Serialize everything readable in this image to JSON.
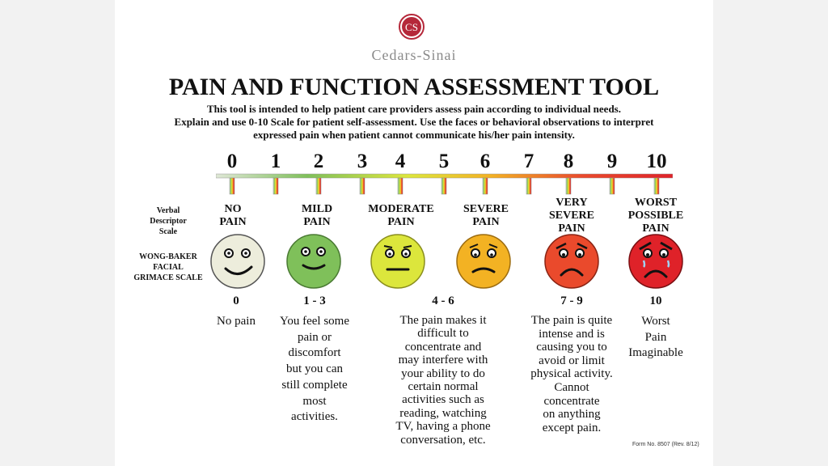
{
  "brand": {
    "logo_letters": "CS",
    "name": "Cedars-Sinai"
  },
  "title": "PAIN AND FUNCTION ASSESSMENT TOOL",
  "intro_lines": [
    "This tool is intended to help patient care providers assess pain according to individual needs.",
    "Explain and use 0-10 Scale for patient self-assessment. Use the faces or behavioral observations to interpret",
    "expressed pain when patient cannot communicate his/her pain intensity."
  ],
  "scale_numbers": [
    "0",
    "1",
    "2",
    "3",
    "4",
    "5",
    "6",
    "7",
    "8",
    "9",
    "10"
  ],
  "side_labels": {
    "verbal": [
      "Verbal",
      "Descriptor",
      "Scale"
    ],
    "wong_baker": [
      "WONG-BAKER",
      "FACIAL",
      "GRIMACE SCALE"
    ]
  },
  "descriptors": [
    {
      "lines": [
        "NO",
        "PAIN"
      ]
    },
    {
      "lines": [
        "MILD",
        "PAIN"
      ]
    },
    {
      "lines": [
        "MODERATE",
        "PAIN"
      ]
    },
    {
      "lines": [
        "SEVERE",
        "PAIN"
      ]
    },
    {
      "lines": [
        "VERY",
        "SEVERE",
        "PAIN"
      ]
    },
    {
      "lines": [
        "WORST",
        "POSSIBLE",
        "PAIN"
      ]
    }
  ],
  "faces": [
    {
      "name": "no-pain-face",
      "color": "#ededdc"
    },
    {
      "name": "mild-pain-face",
      "color": "#7fc05a"
    },
    {
      "name": "moderate-pain-face",
      "color": "#dce63c"
    },
    {
      "name": "severe-pain-face",
      "color": "#f3b223"
    },
    {
      "name": "very-severe-pain-face",
      "color": "#ea4a2c"
    },
    {
      "name": "worst-pain-face",
      "color": "#df2229"
    }
  ],
  "ranges": {
    "r0": "0",
    "r1": "1 - 3",
    "r2": "4 - 6",
    "r3": "7 - 9",
    "r4": "10"
  },
  "explanations": {
    "e0": [
      "No pain"
    ],
    "e1": [
      "You feel some",
      "pain or",
      "discomfort",
      "but you can",
      "still complete",
      "most",
      "activities."
    ],
    "e2": [
      "The pain makes it",
      "difficult to",
      "concentrate and",
      "may interfere with",
      "your ability to do",
      "certain normal",
      "activities such as",
      "reading, watching",
      "TV, having a phone",
      "conversation, etc."
    ],
    "e3": [
      "The pain is quite",
      "intense and is",
      "causing you to",
      "avoid or limit",
      "physical activity.",
      "Cannot",
      "concentrate",
      "on anything",
      "except pain."
    ],
    "e4": [
      "Worst",
      "Pain",
      "Imaginable"
    ]
  },
  "form_number": "Form No. 8507 (Rev. 8/12)"
}
